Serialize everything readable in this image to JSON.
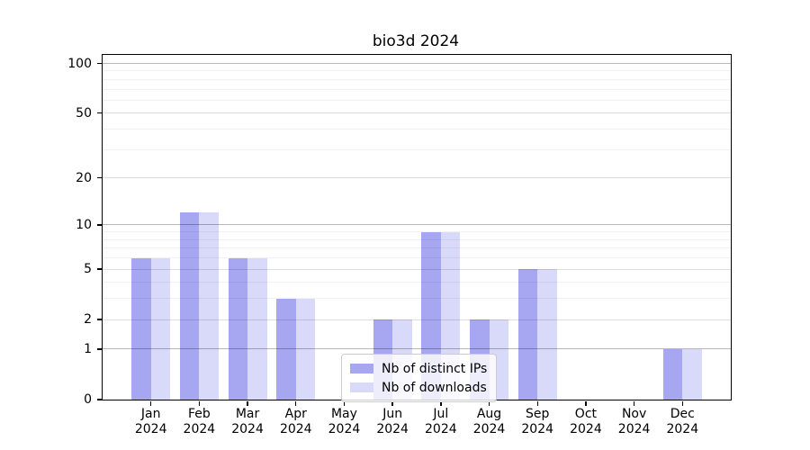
{
  "chart_data": {
    "type": "bar",
    "title": "bio3d 2024",
    "categories": [
      {
        "month": "Jan",
        "year": "2024"
      },
      {
        "month": "Feb",
        "year": "2024"
      },
      {
        "month": "Mar",
        "year": "2024"
      },
      {
        "month": "Apr",
        "year": "2024"
      },
      {
        "month": "May",
        "year": "2024"
      },
      {
        "month": "Jun",
        "year": "2024"
      },
      {
        "month": "Jul",
        "year": "2024"
      },
      {
        "month": "Aug",
        "year": "2024"
      },
      {
        "month": "Sep",
        "year": "2024"
      },
      {
        "month": "Oct",
        "year": "2024"
      },
      {
        "month": "Nov",
        "year": "2024"
      },
      {
        "month": "Dec",
        "year": "2024"
      }
    ],
    "series": [
      {
        "name": "Nb of distinct IPs",
        "color": "#a6a6f1",
        "values": [
          6,
          12,
          6,
          3,
          0,
          2,
          9,
          2,
          5,
          0,
          0,
          1
        ]
      },
      {
        "name": "Nb of downloads",
        "color": "#d9d9f9",
        "values": [
          6,
          12,
          6,
          3,
          0,
          2,
          9,
          2,
          5,
          0,
          0,
          1
        ]
      }
    ],
    "yscale": "log1p",
    "ylim": [
      0,
      115
    ],
    "yticks_major": [
      0,
      1,
      2,
      5,
      10,
      20,
      50,
      100
    ],
    "yticks_minor": [
      3,
      4,
      6,
      7,
      8,
      9,
      30,
      40,
      60,
      70,
      80,
      90
    ],
    "ydecade_lines": [
      1,
      10,
      100
    ],
    "grid": true,
    "legend_position": "lower center",
    "colors": {
      "axis": "#000000",
      "background": "#ffffff",
      "grid_major": "#dedede",
      "grid_decade": "#b8b8b8",
      "legend_border": "#cccccc"
    }
  }
}
